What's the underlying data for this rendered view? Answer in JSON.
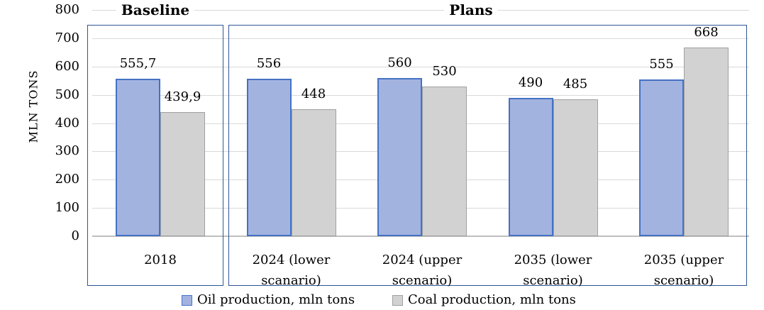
{
  "chart_data": {
    "type": "bar",
    "section_titles": [
      "Baseline",
      "Plans"
    ],
    "ylabel": "MLN TONS",
    "ylim": [
      0,
      800
    ],
    "ytick_step": 100,
    "yticks": [
      0,
      100,
      200,
      300,
      400,
      500,
      600,
      700,
      800
    ],
    "categories": [
      "2018",
      "2024 (lower scanario)",
      "2024 (upper scenario)",
      "2035 (lower scenario)",
      "2035 (upper scenario)"
    ],
    "category_lines": [
      [
        "2018"
      ],
      [
        "2024 (lower",
        "scanario)"
      ],
      [
        "2024 (upper",
        "scenario)"
      ],
      [
        "2035 (lower",
        "scenario)"
      ],
      [
        "2035 (upper",
        "scenario)"
      ]
    ],
    "series": [
      {
        "name": "Oil production, mln tons",
        "values": [
          555.7,
          556,
          560,
          490,
          555
        ],
        "labels": [
          "555,7",
          "556",
          "560",
          "490",
          "555"
        ],
        "fill": "#A3B3DF",
        "border": "#4472C4"
      },
      {
        "name": "Coal production, mln tons",
        "values": [
          439.9,
          448,
          530,
          485,
          668
        ],
        "labels": [
          "439,9",
          "448",
          "530",
          "485",
          "668"
        ],
        "fill": "#D2D2D2",
        "border": "#A0A0A0"
      }
    ],
    "groups": {
      "Baseline": [
        "2018"
      ],
      "Plans": [
        "2024 (lower scanario)",
        "2024 (upper scenario)",
        "2035 (lower scenario)",
        "2035 (upper scenario)"
      ]
    },
    "legend_position": "bottom",
    "grid": true
  },
  "colors": {
    "frame": "#2E5596",
    "gridline": "#D9D9D9",
    "zero_line": "#BFBFBF",
    "text": "#000000",
    "background": "#FFFFFF"
  }
}
